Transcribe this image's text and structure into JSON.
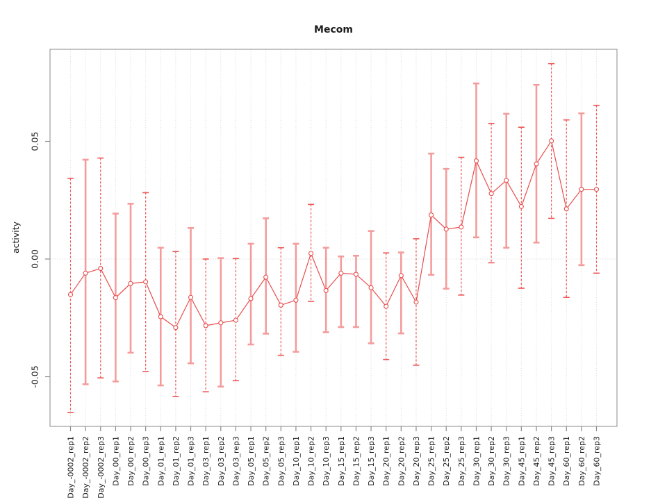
{
  "chart_data": {
    "type": "line",
    "subtype": "points-with-error-bars",
    "title": "Mecom",
    "xlabel": "",
    "ylabel": "activity",
    "legend": "none",
    "grid": "vertical-dotted-per-category-plus-dotted-zero-line",
    "categories": [
      "Day_-0002_rep1",
      "Day_-0002_rep2",
      "Day_-0002_rep3",
      "Day_00_rep1",
      "Day_00_rep2",
      "Day_00_rep3",
      "Day_01_rep1",
      "Day_01_rep2",
      "Day_01_rep3",
      "Day_03_rep1",
      "Day_03_rep2",
      "Day_03_rep3",
      "Day_05_rep1",
      "Day_05_rep2",
      "Day_05_rep3",
      "Day_10_rep1",
      "Day_10_rep2",
      "Day_10_rep3",
      "Day_15_rep1",
      "Day_15_rep2",
      "Day_15_rep3",
      "Day_20_rep1",
      "Day_20_rep2",
      "Day_20_rep3",
      "Day_25_rep1",
      "Day_25_rep2",
      "Day_25_rep3",
      "Day_30_rep1",
      "Day_30_rep2",
      "Day_30_rep3",
      "Day_45_rep1",
      "Day_45_rep2",
      "Day_45_rep3",
      "Day_60_rep1",
      "Day_60_rep2",
      "Day_60_rep3"
    ],
    "series": [
      {
        "name": "activity",
        "values": [
          -0.0151,
          -0.006,
          -0.004,
          -0.0164,
          -0.0104,
          -0.0097,
          -0.0245,
          -0.0291,
          -0.0163,
          -0.0283,
          -0.0271,
          -0.026,
          -0.0168,
          -0.0077,
          -0.0196,
          -0.0175,
          0.0024,
          -0.0134,
          -0.006,
          -0.0065,
          -0.0122,
          -0.0201,
          -0.007,
          -0.0183,
          0.0187,
          0.0127,
          0.0136,
          0.0417,
          0.0278,
          0.0334,
          0.0223,
          0.0404,
          0.0502,
          0.0213,
          0.0296,
          0.0296
        ],
        "upper": [
          0.0343,
          0.0422,
          0.0429,
          0.0193,
          0.0235,
          0.0282,
          0.0048,
          0.0032,
          0.0132,
          0.0,
          0.0004,
          0.0002,
          0.0065,
          0.0173,
          0.0048,
          0.0065,
          0.0232,
          0.0048,
          0.0011,
          0.0014,
          0.0119,
          0.0026,
          0.0028,
          0.0086,
          0.0448,
          0.0383,
          0.0432,
          0.0746,
          0.0576,
          0.0617,
          0.056,
          0.074,
          0.083,
          0.0591,
          0.0619,
          0.0653
        ],
        "lower": [
          -0.0652,
          -0.0532,
          -0.0505,
          -0.052,
          -0.0398,
          -0.0478,
          -0.0537,
          -0.0584,
          -0.0443,
          -0.0564,
          -0.0542,
          -0.0517,
          -0.0363,
          -0.0317,
          -0.0409,
          -0.0394,
          -0.018,
          -0.0311,
          -0.0289,
          -0.0289,
          -0.0358,
          -0.0427,
          -0.0316,
          -0.0451,
          -0.0067,
          -0.0126,
          -0.0153,
          0.0092,
          -0.0016,
          0.0048,
          -0.0124,
          0.007,
          0.0173,
          -0.0163,
          -0.0026,
          -0.006
        ],
        "bar_styles": [
          "d",
          "s",
          "d",
          "s",
          "s",
          "d",
          "s",
          "d",
          "s",
          "d",
          "s",
          "d",
          "s",
          "s",
          "d",
          "s",
          "d",
          "s",
          "s",
          "s",
          "s",
          "d",
          "s",
          "d",
          "s",
          "s",
          "d",
          "s",
          "d",
          "s",
          "d",
          "s",
          "d",
          "d",
          "s",
          "d"
        ]
      }
    ],
    "yticks": {
      "values": [
        0.05,
        0.0,
        -0.05
      ],
      "labels": [
        "0.05",
        "0.00",
        "-0.05"
      ]
    },
    "ylim": [
      -0.0711,
      0.0891
    ],
    "zero_line": 0,
    "marker": "open-circle",
    "colors": {
      "line": "#e84c4c",
      "marker_stroke": "#e84c4c",
      "marker_fill": "#ffffff",
      "bar_solid": "#f49c9c",
      "bar_dashed": "#ee5555",
      "box": "#8a8a8a",
      "tick": "#8a8a8a",
      "text": "#1c1c1c",
      "grid": "#dadada",
      "zero": "#d4d4d4",
      "background": "#ffffff"
    }
  }
}
